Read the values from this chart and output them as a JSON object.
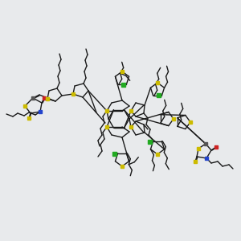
{
  "bg": "#e8eaec",
  "lc": "#1a1a1a",
  "lw": 1.0,
  "S_color": "#ccbb00",
  "N_color": "#2244cc",
  "O_color": "#cc2222",
  "Cl_color": "#22aa22",
  "C_gray": "#555555",
  "sq": 4
}
